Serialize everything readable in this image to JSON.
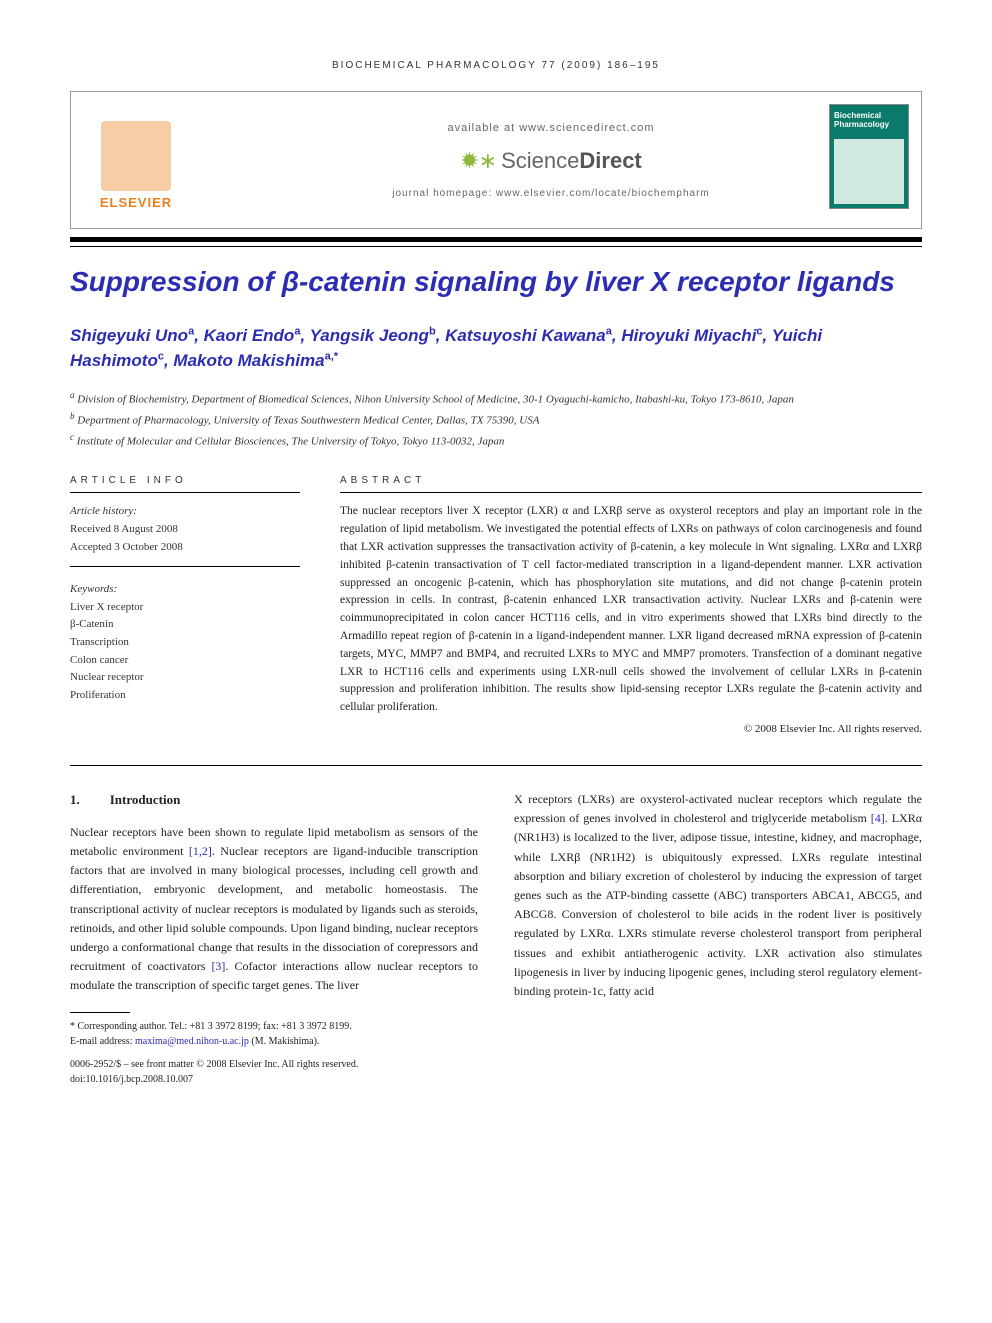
{
  "citation": "BIOCHEMICAL PHARMACOLOGY 77 (2009) 186–195",
  "header": {
    "elsevier": "ELSEVIER",
    "available": "available at www.sciencedirect.com",
    "sd_prefix": "Science",
    "sd_suffix": "Direct",
    "homepage": "journal homepage: www.elsevier.com/locate/biochempharm",
    "cover_line1": "Biochemical",
    "cover_line2": "Pharmacology"
  },
  "title": "Suppression of β-catenin signaling by liver X receptor ligands",
  "authors_html": "Shigeyuki Uno<sup>a</sup>, Kaori Endo<sup>a</sup>, Yangsik Jeong<sup>b</sup>, Katsuyoshi Kawana<sup>a</sup>, Hiroyuki Miyachi<sup>c</sup>, Yuichi Hashimoto<sup>c</sup>, Makoto Makishima<sup>a,*</sup>",
  "affiliations": {
    "a": "Division of Biochemistry, Department of Biomedical Sciences, Nihon University School of Medicine, 30-1 Oyaguchi-kamicho, Itabashi-ku, Tokyo 173-8610, Japan",
    "b": "Department of Pharmacology, University of Texas Southwestern Medical Center, Dallas, TX 75390, USA",
    "c": "Institute of Molecular and Cellular Biosciences, The University of Tokyo, Tokyo 113-0032, Japan"
  },
  "article_info": {
    "header": "ARTICLE INFO",
    "history_label": "Article history:",
    "received": "Received 8 August 2008",
    "accepted": "Accepted 3 October 2008",
    "keywords_label": "Keywords:",
    "keywords": [
      "Liver X receptor",
      "β-Catenin",
      "Transcription",
      "Colon cancer",
      "Nuclear receptor",
      "Proliferation"
    ]
  },
  "abstract": {
    "header": "ABSTRACT",
    "text": "The nuclear receptors liver X receptor (LXR) α and LXRβ serve as oxysterol receptors and play an important role in the regulation of lipid metabolism. We investigated the potential effects of LXRs on pathways of colon carcinogenesis and found that LXR activation suppresses the transactivation activity of β-catenin, a key molecule in Wnt signaling. LXRα and LXRβ inhibited β-catenin transactivation of T cell factor-mediated transcription in a ligand-dependent manner. LXR activation suppressed an oncogenic β-catenin, which has phosphorylation site mutations, and did not change β-catenin protein expression in cells. In contrast, β-catenin enhanced LXR transactivation activity. Nuclear LXRs and β-catenin were coimmunoprecipitated in colon cancer HCT116 cells, and in vitro experiments showed that LXRs bind directly to the Armadillo repeat region of β-catenin in a ligand-independent manner. LXR ligand decreased mRNA expression of β-catenin targets, MYC, MMP7 and BMP4, and recruited LXRs to MYC and MMP7 promoters. Transfection of a dominant negative LXR to HCT116 cells and experiments using LXR-null cells showed the involvement of cellular LXRs in β-catenin suppression and proliferation inhibition. The results show lipid-sensing receptor LXRs regulate the β-catenin activity and cellular proliferation.",
    "copyright": "© 2008 Elsevier Inc. All rights reserved."
  },
  "body": {
    "heading_num": "1.",
    "heading_text": "Introduction",
    "col1": "Nuclear receptors have been shown to regulate lipid metabolism as sensors of the metabolic environment [1,2]. Nuclear receptors are ligand-inducible transcription factors that are involved in many biological processes, including cell growth and differentiation, embryonic development, and metabolic homeostasis. The transcriptional activity of nuclear receptors is modulated by ligands such as steroids, retinoids, and other lipid soluble compounds. Upon ligand binding, nuclear receptors undergo a conformational change that results in the dissociation of corepressors and recruitment of coactivators [3]. Cofactor interactions allow nuclear receptors to modulate the transcription of specific target genes. The liver",
    "col2": "X receptors (LXRs) are oxysterol-activated nuclear receptors which regulate the expression of genes involved in cholesterol and triglyceride metabolism [4]. LXRα (NR1H3) is localized to the liver, adipose tissue, intestine, kidney, and macrophage, while LXRβ (NR1H2) is ubiquitously expressed. LXRs regulate intestinal absorption and biliary excretion of cholesterol by inducing the expression of target genes such as the ATP-binding cassette (ABC) transporters ABCA1, ABCG5, and ABCG8. Conversion of cholesterol to bile acids in the rodent liver is positively regulated by LXRα. LXRs stimulate reverse cholesterol transport from peripheral tissues and exhibit antiatherogenic activity. LXR activation also stimulates lipogenesis in liver by inducing lipogenic genes, including sterol regulatory element-binding protein-1c, fatty acid",
    "refs_col1": [
      "[1,2]",
      "[3]"
    ],
    "refs_col2": [
      "[4]"
    ]
  },
  "footnote": {
    "corr": "* Corresponding author. Tel.: +81 3 3972 8199; fax: +81 3 3972 8199.",
    "email_label": "E-mail address:",
    "email": "maxima@med.nihon-u.ac.jp",
    "email_paren": "(M. Makishima)."
  },
  "bottom": {
    "line1": "0006-2952/$ – see front matter © 2008 Elsevier Inc. All rights reserved.",
    "line2": "doi:10.1016/j.bcp.2008.10.007"
  },
  "colors": {
    "link": "#2d2db3",
    "elsevier": "#e8821e",
    "sd_green": "#8fb83a",
    "cover": "#0a7a6a"
  }
}
